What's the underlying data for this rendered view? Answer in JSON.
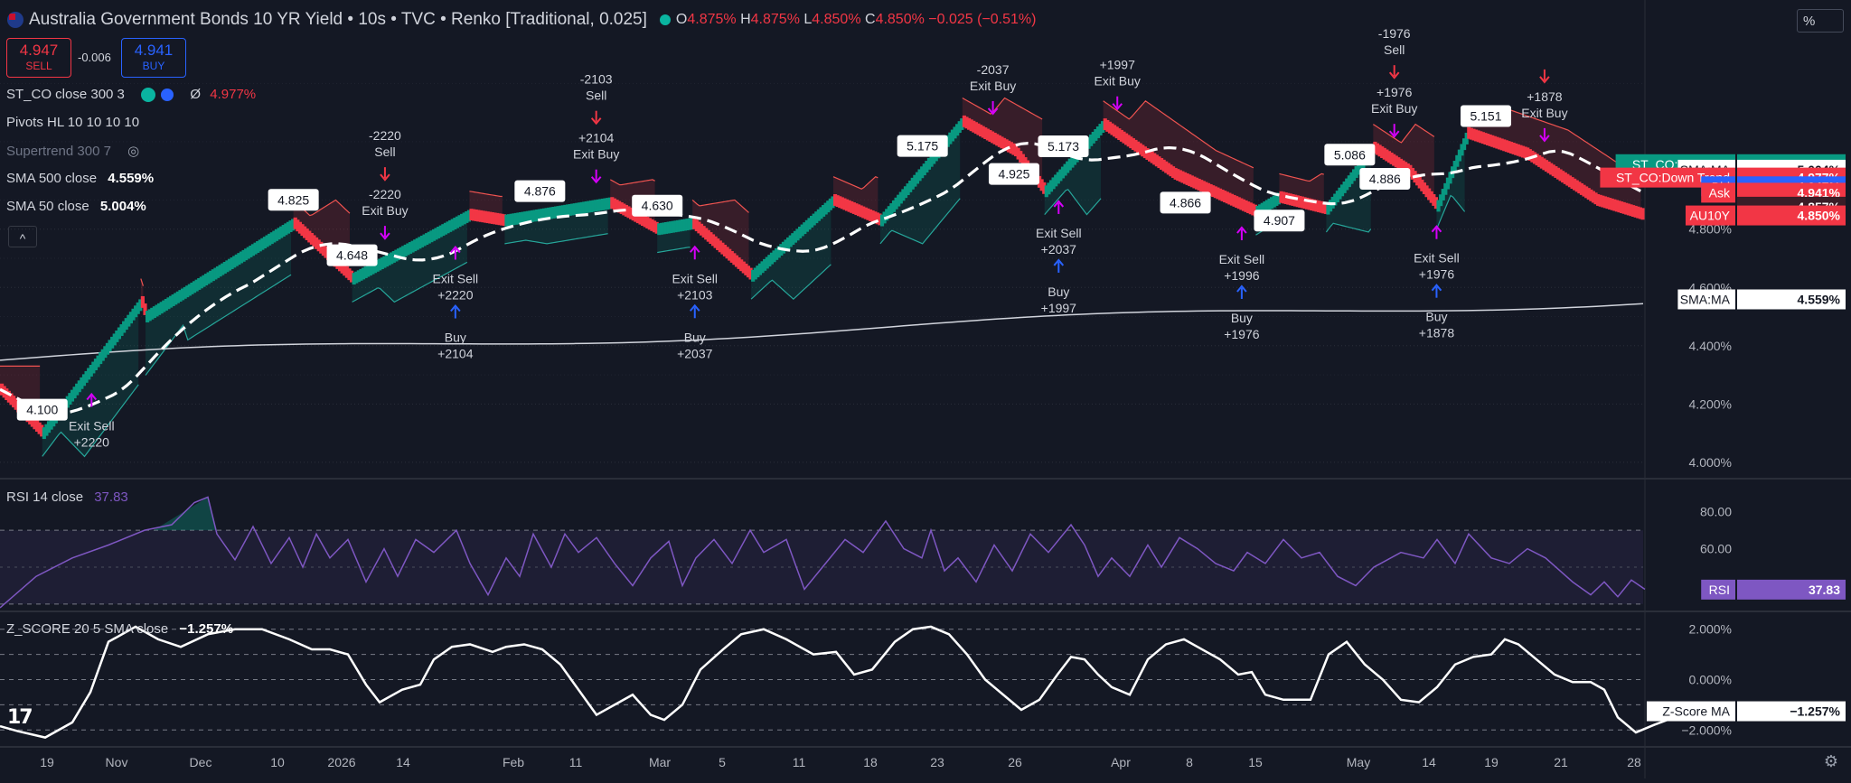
{
  "header": {
    "title": "Australia Government Bonds 10 YR Yield • 10s • TVC • Renko [Traditional, 0.025]",
    "open_label": "O",
    "open": "4.875%",
    "high_label": "H",
    "high": "4.875%",
    "low_label": "L",
    "low": "4.850%",
    "close_label": "C",
    "close": "4.850%",
    "change": "−0.025 (−0.51%)"
  },
  "trade": {
    "sell_price": "4.947",
    "sell_label": "SELL",
    "spread": "-0.006",
    "buy_price": "4.941",
    "buy_label": "BUY"
  },
  "scale_button": "%",
  "legend": {
    "st_co": "ST_CO close 300 3",
    "st_co_value": "4.977%",
    "st_co_symbol": "Ø",
    "pivots": "Pivots HL 10 10 10 10",
    "supertrend": "Supertrend 300 7",
    "sma500": "SMA 500 close",
    "sma500_value": "4.559%",
    "sma50": "SMA 50 close",
    "sma50_value": "5.004%",
    "collapse": "^"
  },
  "colors": {
    "bg": "#141824",
    "up": "#089981",
    "down": "#f23645",
    "grid": "#2a2e39",
    "rsi": "#7e57c2",
    "buy_arrow": "#2962ff",
    "exit_arrow": "#d500f9",
    "sma_line": "#ffffff"
  },
  "chart_data": [
    {
      "type": "renko",
      "title": "Australia Government Bonds 10 YR Yield",
      "ylim": [
        3.95,
        5.45
      ],
      "yticks": [
        "4.000%",
        "4.200%",
        "4.400%",
        "4.600%",
        "4.800%"
      ],
      "ytick_values": [
        4.0,
        4.2,
        4.4,
        4.6,
        4.8
      ],
      "box_size": 0.025,
      "brick_path": [
        [
          0,
          4.25
        ],
        [
          18,
          4.1
        ],
        [
          60,
          4.55
        ],
        [
          62,
          4.5
        ],
        [
          125,
          4.82
        ],
        [
          150,
          4.63
        ],
        [
          200,
          4.85
        ],
        [
          215,
          4.83
        ],
        [
          260,
          4.89
        ],
        [
          280,
          4.8
        ],
        [
          295,
          4.82
        ],
        [
          320,
          4.64
        ],
        [
          355,
          4.9
        ],
        [
          375,
          4.83
        ],
        [
          410,
          5.17
        ],
        [
          432,
          5.07
        ],
        [
          445,
          4.93
        ],
        [
          470,
          5.16
        ],
        [
          500,
          4.99
        ],
        [
          535,
          4.86
        ],
        [
          545,
          4.91
        ],
        [
          565,
          4.87
        ],
        [
          585,
          5.08
        ],
        [
          600,
          5.0
        ],
        [
          612,
          4.88
        ],
        [
          625,
          5.13
        ],
        [
          650,
          5.06
        ],
        [
          680,
          4.9
        ],
        [
          700,
          4.85
        ]
      ],
      "price_markers": [
        {
          "label": "4.100",
          "i": 18
        },
        {
          "label": "4.825",
          "i": 125
        },
        {
          "label": "4.648",
          "i": 150
        },
        {
          "label": "4.876",
          "i": 230
        },
        {
          "label": "4.630",
          "i": 280
        },
        {
          "label": "5.175",
          "i": 393
        },
        {
          "label": "4.925",
          "i": 432
        },
        {
          "label": "5.173",
          "i": 453
        },
        {
          "label": "4.866",
          "i": 505
        },
        {
          "label": "4.907",
          "i": 545
        },
        {
          "label": "5.086",
          "i": 575
        },
        {
          "label": "4.886",
          "i": 590
        },
        {
          "label": "5.151",
          "i": 633
        }
      ],
      "signals": [
        {
          "kind": "exit",
          "lines": [
            "Exit Sell",
            "+2220"
          ],
          "i": 38,
          "pos": "below"
        },
        {
          "kind": "buy",
          "lines": [
            "Buy",
            "+2104"
          ],
          "i": 193,
          "pos": "below"
        },
        {
          "kind": "exit",
          "lines": [
            "Exit Sell",
            "+2220"
          ],
          "i": 193,
          "pos": "below_near"
        },
        {
          "kind": "sell",
          "lines": [
            "-2220",
            "Sell"
          ],
          "i": 163,
          "pos": "above"
        },
        {
          "kind": "exit",
          "lines": [
            "-2220",
            "Exit Buy"
          ],
          "i": 163,
          "pos": "above_near"
        },
        {
          "kind": "sell",
          "lines": [
            "-2103",
            "Sell"
          ],
          "i": 253,
          "pos": "above"
        },
        {
          "kind": "exit",
          "lines": [
            "+2104",
            "Exit Buy"
          ],
          "i": 253,
          "pos": "above_near"
        },
        {
          "kind": "buy",
          "lines": [
            "Buy",
            "+2037"
          ],
          "i": 295,
          "pos": "below"
        },
        {
          "kind": "exit",
          "lines": [
            "Exit Sell",
            "+2103"
          ],
          "i": 295,
          "pos": "below_near"
        },
        {
          "kind": "exit",
          "lines": [
            "-2037",
            "Exit Buy"
          ],
          "i": 422,
          "pos": "above_near"
        },
        {
          "kind": "buy",
          "lines": [
            "Buy",
            "+1997"
          ],
          "i": 450,
          "pos": "below"
        },
        {
          "kind": "exit",
          "lines": [
            "Exit Sell",
            "+2037"
          ],
          "i": 450,
          "pos": "below_near"
        },
        {
          "kind": "exit",
          "lines": [
            "+1997",
            "Exit Buy"
          ],
          "i": 475,
          "pos": "above_near"
        },
        {
          "kind": "buy",
          "lines": [
            "Buy",
            "+1976"
          ],
          "i": 528,
          "pos": "below"
        },
        {
          "kind": "exit",
          "lines": [
            "Exit Sell",
            "+1996"
          ],
          "i": 528,
          "pos": "below_near"
        },
        {
          "kind": "sell",
          "lines": [
            "-1976",
            "Sell"
          ],
          "i": 593,
          "pos": "above"
        },
        {
          "kind": "exit",
          "lines": [
            "+1976",
            "Exit Buy"
          ],
          "i": 593,
          "pos": "above_near"
        },
        {
          "kind": "buy",
          "lines": [
            "Buy",
            "+1878"
          ],
          "i": 611,
          "pos": "below"
        },
        {
          "kind": "exit",
          "lines": [
            "Exit Sell",
            "+1976"
          ],
          "i": 611,
          "pos": "below_near"
        },
        {
          "kind": "sell",
          "lines": [
            "",
            ""
          ],
          "i": 657,
          "pos": "above"
        },
        {
          "kind": "exit",
          "lines": [
            "+1878",
            "Exit Buy"
          ],
          "i": 657,
          "pos": "above_near"
        }
      ],
      "right_labels": [
        {
          "name": "ST_CO:Up Trend",
          "value": "5.023%",
          "color": "#089981",
          "y": 5.023
        },
        {
          "name": "SMA:MA",
          "value": "5.004%",
          "color": "#ffffff",
          "y": 5.004
        },
        {
          "name": "ST_CO:Down Trend",
          "value": "4.977%",
          "color": "#f23645",
          "y": 4.977
        },
        {
          "name": "Bid",
          "value": "4.947%",
          "color": "#2962ff",
          "y": 4.947
        },
        {
          "name": "Ask",
          "value": "4.941%",
          "color": "#f23645",
          "y": 4.925
        },
        {
          "name": "",
          "value": "4.857%",
          "color": "#3b1d27",
          "y": 4.877
        },
        {
          "name": "AU10Y",
          "value": "4.850%",
          "color": "#f23645",
          "y": 4.847
        }
      ],
      "sma500_label": {
        "name": "SMA:MA",
        "value": "4.559%"
      }
    },
    {
      "type": "line",
      "title": "RSI 14 close",
      "value": "37.83",
      "ylim": [
        27,
        97
      ],
      "yticks": [
        "80.00",
        "60.00"
      ],
      "ytick_values": [
        80,
        60
      ],
      "bands": [
        70,
        30
      ],
      "points": [
        [
          0,
          28
        ],
        [
          40,
          45
        ],
        [
          80,
          55
        ],
        [
          120,
          62
        ],
        [
          160,
          70
        ],
        [
          190,
          73
        ],
        [
          215,
          85
        ],
        [
          230,
          88
        ],
        [
          240,
          68
        ],
        [
          260,
          54
        ],
        [
          280,
          72
        ],
        [
          300,
          52
        ],
        [
          320,
          66
        ],
        [
          335,
          50
        ],
        [
          350,
          68
        ],
        [
          365,
          55
        ],
        [
          385,
          65
        ],
        [
          405,
          42
        ],
        [
          425,
          60
        ],
        [
          440,
          45
        ],
        [
          460,
          65
        ],
        [
          480,
          58
        ],
        [
          505,
          70
        ],
        [
          520,
          52
        ],
        [
          540,
          35
        ],
        [
          560,
          55
        ],
        [
          575,
          45
        ],
        [
          590,
          68
        ],
        [
          610,
          50
        ],
        [
          625,
          68
        ],
        [
          640,
          58
        ],
        [
          660,
          66
        ],
        [
          680,
          52
        ],
        [
          700,
          40
        ],
        [
          720,
          55
        ],
        [
          740,
          64
        ],
        [
          755,
          40
        ],
        [
          770,
          55
        ],
        [
          790,
          65
        ],
        [
          810,
          52
        ],
        [
          830,
          70
        ],
        [
          845,
          58
        ],
        [
          870,
          65
        ],
        [
          890,
          38
        ],
        [
          910,
          50
        ],
        [
          935,
          65
        ],
        [
          955,
          58
        ],
        [
          980,
          75
        ],
        [
          1000,
          60
        ],
        [
          1020,
          55
        ],
        [
          1030,
          70
        ],
        [
          1045,
          48
        ],
        [
          1060,
          55
        ],
        [
          1080,
          42
        ],
        [
          1100,
          62
        ],
        [
          1120,
          48
        ],
        [
          1140,
          68
        ],
        [
          1160,
          58
        ],
        [
          1185,
          73
        ],
        [
          1200,
          62
        ],
        [
          1215,
          45
        ],
        [
          1230,
          55
        ],
        [
          1250,
          45
        ],
        [
          1270,
          62
        ],
        [
          1285,
          50
        ],
        [
          1305,
          66
        ],
        [
          1325,
          60
        ],
        [
          1345,
          52
        ],
        [
          1365,
          48
        ],
        [
          1380,
          58
        ],
        [
          1400,
          52
        ],
        [
          1420,
          65
        ],
        [
          1440,
          55
        ],
        [
          1460,
          58
        ],
        [
          1480,
          45
        ],
        [
          1500,
          40
        ],
        [
          1520,
          50
        ],
        [
          1550,
          58
        ],
        [
          1575,
          55
        ],
        [
          1590,
          65
        ],
        [
          1610,
          52
        ],
        [
          1625,
          68
        ],
        [
          1650,
          55
        ],
        [
          1670,
          52
        ],
        [
          1690,
          60
        ],
        [
          1710,
          55
        ],
        [
          1740,
          42
        ],
        [
          1760,
          35
        ],
        [
          1775,
          42
        ],
        [
          1790,
          34
        ],
        [
          1805,
          43
        ],
        [
          1820,
          38
        ]
      ],
      "right_label": {
        "name": "RSI",
        "value": "37.83"
      }
    },
    {
      "type": "line",
      "title": "Z_SCORE 20 5 SMA close",
      "value": "−1.257%",
      "ylim": [
        -2.6,
        2.6
      ],
      "yticks": [
        "2.000%",
        "0.000%",
        "−2.000%"
      ],
      "ytick_values": [
        2,
        0,
        -2
      ],
      "points": [
        [
          0,
          -1.85
        ],
        [
          20,
          -2.05
        ],
        [
          50,
          -2.3
        ],
        [
          80,
          -1.7
        ],
        [
          100,
          -0.5
        ],
        [
          120,
          1.5
        ],
        [
          150,
          2.1
        ],
        [
          175,
          1.6
        ],
        [
          200,
          1.3
        ],
        [
          230,
          1.8
        ],
        [
          260,
          2.0
        ],
        [
          290,
          2.0
        ],
        [
          320,
          1.6
        ],
        [
          345,
          1.2
        ],
        [
          365,
          1.2
        ],
        [
          385,
          1.0
        ],
        [
          405,
          -0.2
        ],
        [
          420,
          -0.9
        ],
        [
          445,
          -0.4
        ],
        [
          465,
          -0.2
        ],
        [
          480,
          0.8
        ],
        [
          500,
          1.3
        ],
        [
          520,
          1.4
        ],
        [
          545,
          1.1
        ],
        [
          560,
          1.3
        ],
        [
          580,
          1.4
        ],
        [
          600,
          1.2
        ],
        [
          620,
          0.6
        ],
        [
          640,
          -0.4
        ],
        [
          660,
          -1.4
        ],
        [
          680,
          -1.0
        ],
        [
          700,
          -0.6
        ],
        [
          720,
          -1.4
        ],
        [
          735,
          -1.6
        ],
        [
          755,
          -1.0
        ],
        [
          775,
          0.4
        ],
        [
          800,
          1.2
        ],
        [
          820,
          1.8
        ],
        [
          845,
          2.0
        ],
        [
          870,
          1.6
        ],
        [
          900,
          1.0
        ],
        [
          925,
          1.1
        ],
        [
          945,
          0.2
        ],
        [
          965,
          0.4
        ],
        [
          990,
          1.5
        ],
        [
          1010,
          2.0
        ],
        [
          1030,
          2.1
        ],
        [
          1050,
          1.8
        ],
        [
          1070,
          1.0
        ],
        [
          1090,
          0.0
        ],
        [
          1110,
          -0.6
        ],
        [
          1130,
          -1.2
        ],
        [
          1150,
          -0.8
        ],
        [
          1170,
          0.2
        ],
        [
          1185,
          0.9
        ],
        [
          1200,
          0.8
        ],
        [
          1215,
          0.2
        ],
        [
          1230,
          -0.3
        ],
        [
          1250,
          -0.6
        ],
        [
          1270,
          0.8
        ],
        [
          1290,
          1.4
        ],
        [
          1310,
          1.6
        ],
        [
          1330,
          1.2
        ],
        [
          1350,
          0.8
        ],
        [
          1370,
          0.2
        ],
        [
          1385,
          0.3
        ],
        [
          1400,
          -0.6
        ],
        [
          1420,
          -0.8
        ],
        [
          1450,
          -0.8
        ],
        [
          1470,
          1.0
        ],
        [
          1490,
          1.5
        ],
        [
          1510,
          0.6
        ],
        [
          1530,
          0.0
        ],
        [
          1550,
          -0.8
        ],
        [
          1570,
          -0.9
        ],
        [
          1590,
          -0.3
        ],
        [
          1610,
          0.6
        ],
        [
          1630,
          0.9
        ],
        [
          1650,
          1.0
        ],
        [
          1665,
          1.6
        ],
        [
          1680,
          1.4
        ],
        [
          1700,
          0.8
        ],
        [
          1720,
          0.2
        ],
        [
          1740,
          -0.1
        ],
        [
          1760,
          -0.1
        ],
        [
          1775,
          -0.4
        ],
        [
          1790,
          -1.5
        ],
        [
          1810,
          -2.1
        ],
        [
          1830,
          -1.8
        ],
        [
          1845,
          -1.6
        ],
        [
          1860,
          -1.4
        ],
        [
          1875,
          -1.4
        ],
        [
          1880,
          -1.26
        ]
      ],
      "right_label": {
        "name": "Z-Score MA",
        "value": "−1.257%"
      }
    }
  ],
  "x_axis": {
    "labels": [
      {
        "text": "19",
        "x": 52
      },
      {
        "text": "Nov",
        "x": 129
      },
      {
        "text": "Dec",
        "x": 222
      },
      {
        "text": "10",
        "x": 307
      },
      {
        "text": "2026",
        "x": 378
      },
      {
        "text": "14",
        "x": 446
      },
      {
        "text": "Feb",
        "x": 568
      },
      {
        "text": "11",
        "x": 637
      },
      {
        "text": "Mar",
        "x": 730
      },
      {
        "text": "5",
        "x": 799
      },
      {
        "text": "11",
        "x": 884
      },
      {
        "text": "18",
        "x": 963
      },
      {
        "text": "23",
        "x": 1037
      },
      {
        "text": "26",
        "x": 1123
      },
      {
        "text": "Apr",
        "x": 1240
      },
      {
        "text": "8",
        "x": 1316
      },
      {
        "text": "15",
        "x": 1389
      },
      {
        "text": "May",
        "x": 1503
      },
      {
        "text": "14",
        "x": 1581
      },
      {
        "text": "19",
        "x": 1650
      },
      {
        "text": "21",
        "x": 1727
      },
      {
        "text": "28",
        "x": 1808
      }
    ]
  }
}
